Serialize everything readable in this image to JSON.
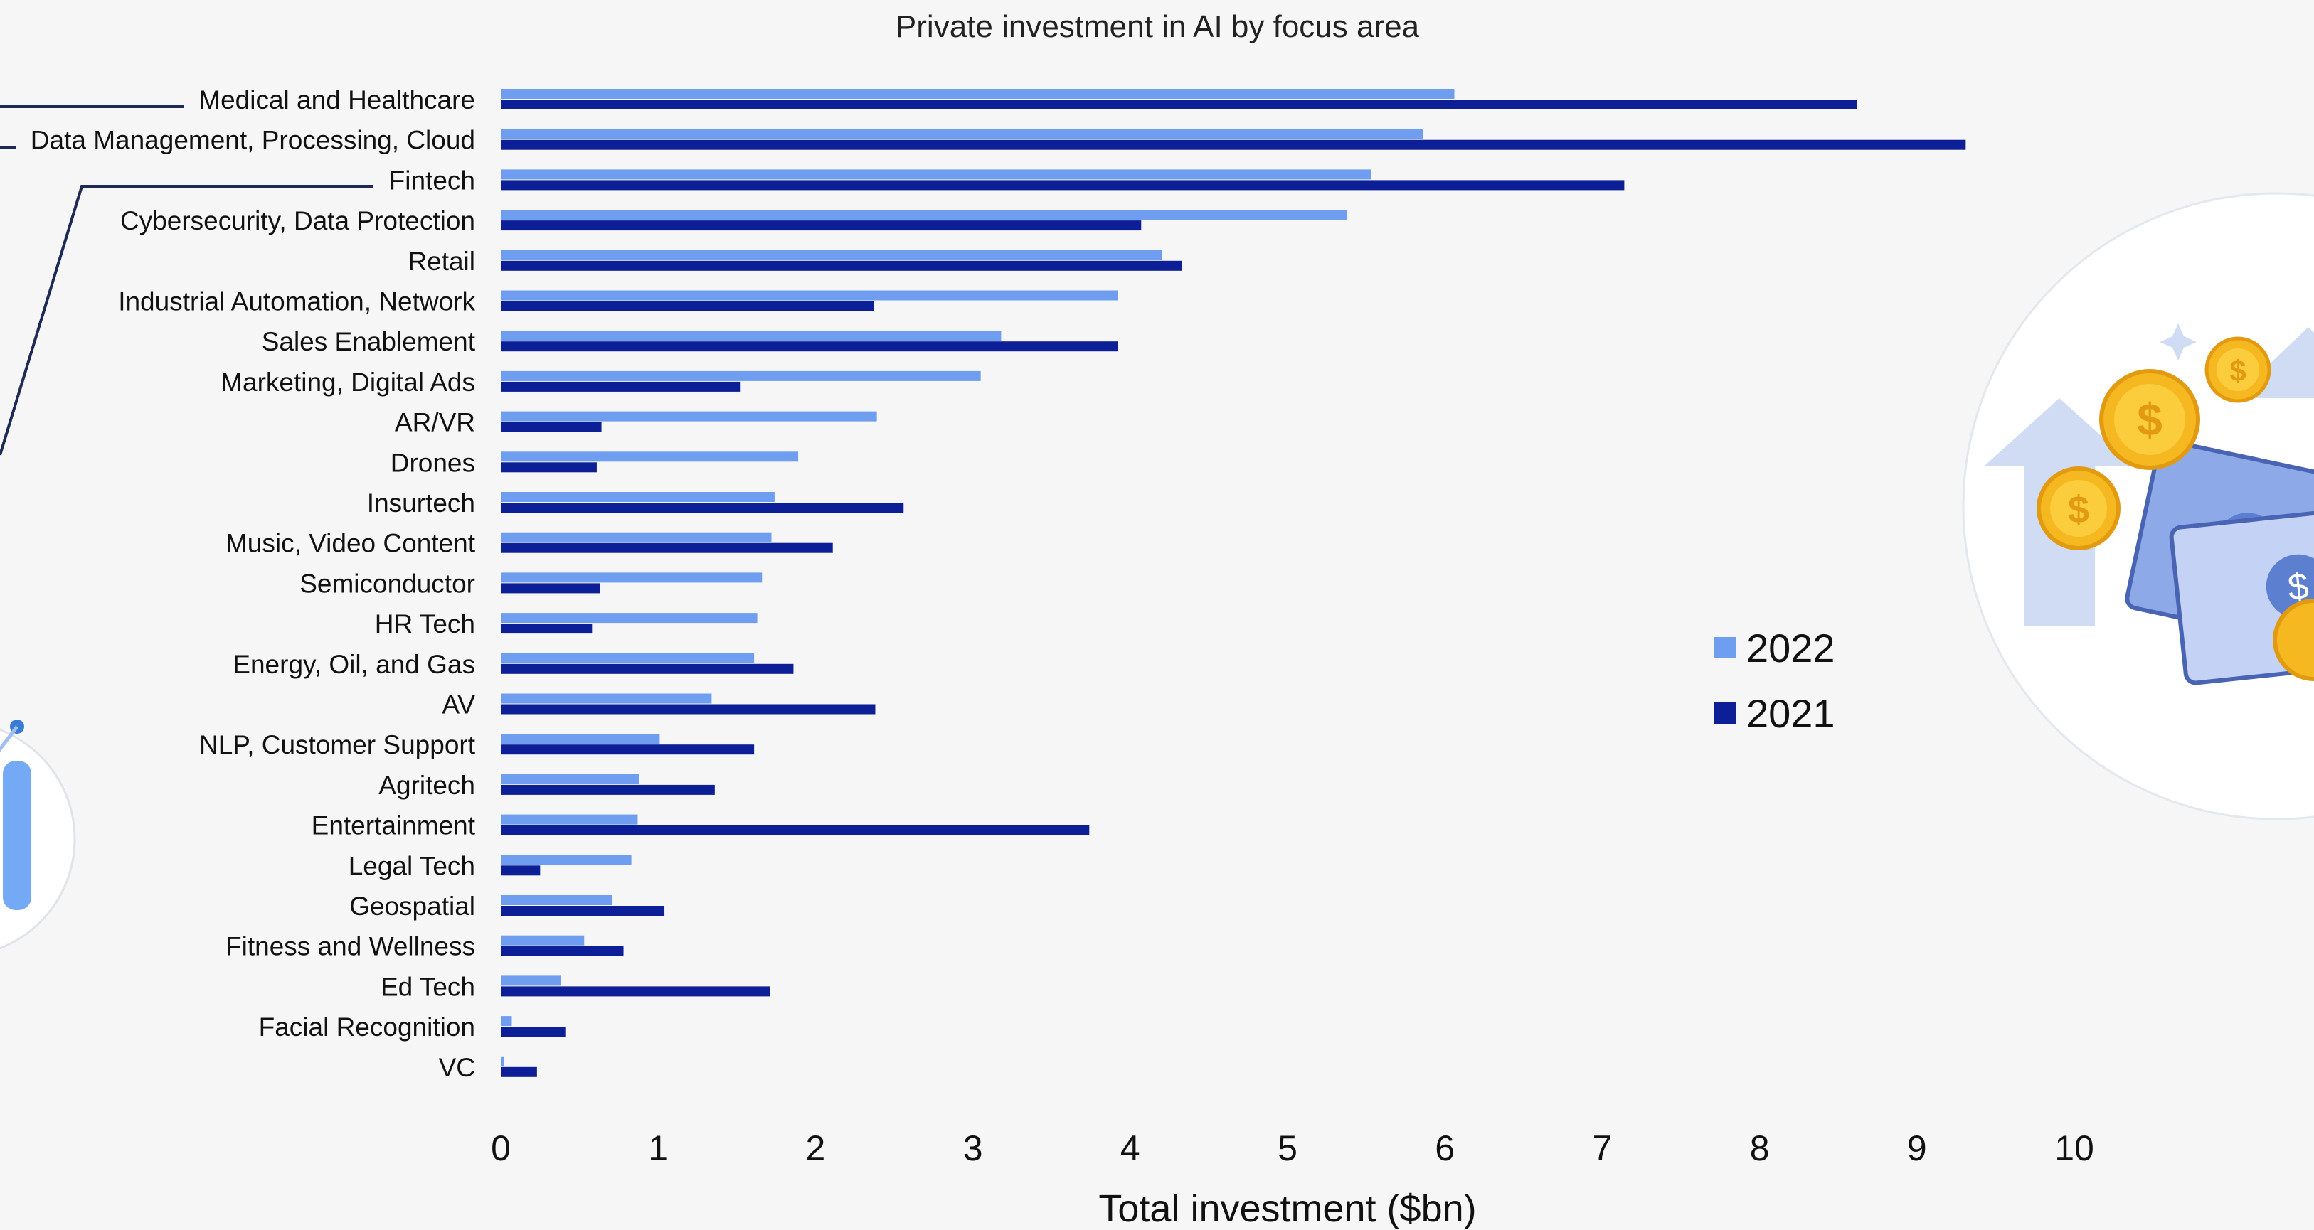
{
  "chart_data": {
    "type": "bar",
    "orientation": "horizontal",
    "title": "Private investment in AI by focus area",
    "xlabel": "Total investment ($bn)",
    "ylabel": "",
    "xlim": [
      0,
      10
    ],
    "xticks": [
      0,
      1,
      2,
      3,
      4,
      5,
      6,
      7,
      8,
      9,
      10
    ],
    "grid": false,
    "legend_position": "center-right",
    "categories": [
      "Medical and Healthcare",
      "Data Management, Processing, Cloud",
      "Fintech",
      "Cybersecurity, Data Protection",
      "Retail",
      "Industrial Automation, Network",
      "Sales Enablement",
      "Marketing, Digital Ads",
      "AR/VR",
      "Drones",
      "Insurtech",
      "Music, Video Content",
      "Semiconductor",
      "HR Tech",
      "Energy, Oil, and Gas",
      "AV",
      "NLP, Customer Support",
      "Agritech",
      "Entertainment",
      "Legal Tech",
      "Geospatial",
      "Fitness and Wellness",
      "Ed Tech",
      "Facial Recognition",
      "VC"
    ],
    "series": [
      {
        "name": "2022",
        "color": "#6f9ef0",
        "values": [
          6.06,
          5.86,
          5.53,
          5.38,
          4.2,
          3.92,
          3.18,
          3.05,
          2.39,
          1.89,
          1.74,
          1.72,
          1.66,
          1.63,
          1.61,
          1.34,
          1.01,
          0.88,
          0.87,
          0.83,
          0.71,
          0.53,
          0.38,
          0.07,
          0.02
        ]
      },
      {
        "name": "2021",
        "color": "#0d1f96",
        "values": [
          8.62,
          9.31,
          7.14,
          4.07,
          4.33,
          2.37,
          3.92,
          1.52,
          0.64,
          0.61,
          2.56,
          2.11,
          0.63,
          0.58,
          1.86,
          2.38,
          1.61,
          1.36,
          3.74,
          0.25,
          1.04,
          0.78,
          1.71,
          0.41,
          0.23
        ]
      }
    ]
  },
  "decor": {
    "coin_symbol": "$",
    "coin_color": "#f6b820",
    "bill_color": "#a9bdf0",
    "arrow_color": "#cfdcf3",
    "accent_blue": "#3a7bd5"
  }
}
